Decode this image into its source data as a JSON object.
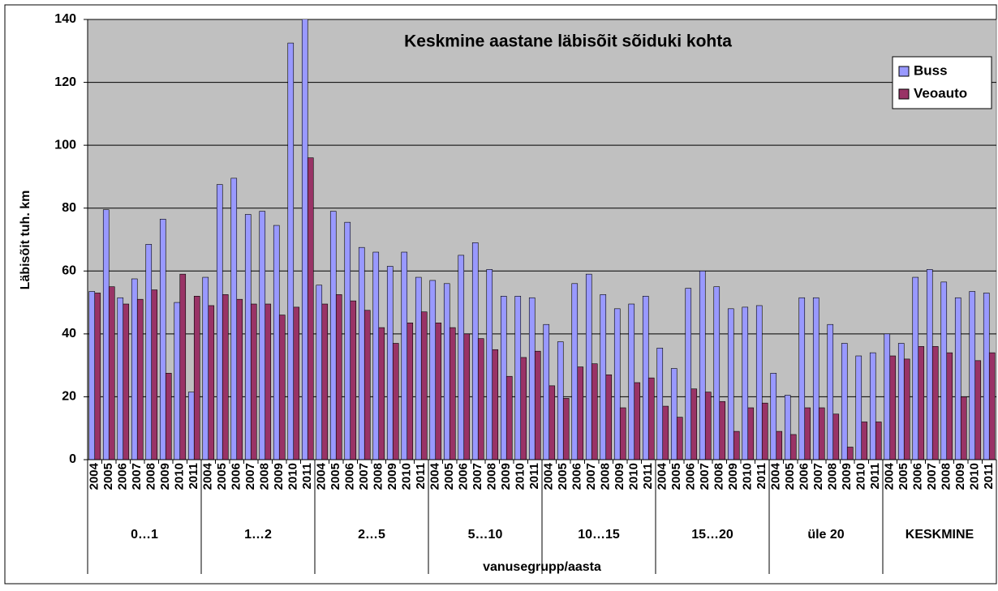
{
  "chart_data": {
    "type": "bar",
    "title": "Keskmine aastane läbisõit sõiduki kohta",
    "y_label": "Läbisõit tuh. km",
    "x_label": "vanusegrupp/aasta",
    "groups": [
      "0…1",
      "1…2",
      "2…5",
      "5…10",
      "10…15",
      "15…20",
      "üle 20",
      "KESKMINE"
    ],
    "categories": [
      "2004",
      "2005",
      "2006",
      "2007",
      "2008",
      "2009",
      "2010",
      "2011",
      "2004",
      "2005",
      "2006",
      "2007",
      "2008",
      "2009",
      "2010",
      "2011",
      "2004",
      "2005",
      "2006",
      "2007",
      "2008",
      "2009",
      "2010",
      "2011",
      "2004",
      "2005",
      "2006",
      "2007",
      "2008",
      "2009",
      "2010",
      "2011",
      "2004",
      "2005",
      "2006",
      "2007",
      "2008",
      "2009",
      "2010",
      "2011",
      "2004",
      "2005",
      "2006",
      "2007",
      "2008",
      "2009",
      "2010",
      "2011",
      "2004",
      "2005",
      "2006",
      "2007",
      "2008",
      "2009",
      "2010",
      "2011",
      "2004",
      "2005",
      "2006",
      "2007",
      "2008",
      "2009",
      "2010",
      "2011"
    ],
    "series": [
      {
        "name": "Buss",
        "color": "#9999ff",
        "values": [
          53.5,
          79.5,
          51.5,
          57.5,
          68.5,
          76.5,
          50,
          21.5,
          58,
          87.5,
          89.5,
          78,
          79,
          74.5,
          132.5,
          145,
          55.5,
          79,
          75.5,
          67.5,
          66,
          61.5,
          66,
          58,
          57,
          56,
          65,
          69,
          60.5,
          52,
          52,
          51.5,
          43,
          37.5,
          56,
          59,
          52.5,
          48,
          49.5,
          52,
          35.5,
          29,
          54.5,
          60,
          55,
          48,
          48.5,
          49,
          27.5,
          20.5,
          51.5,
          51.5,
          43,
          37,
          33,
          34,
          40,
          37,
          58,
          60.5,
          56.5,
          51.5,
          53.5,
          53
        ]
      },
      {
        "name": "Veoauto",
        "color": "#993366",
        "values": [
          53,
          55,
          49.5,
          51,
          54,
          27.5,
          59,
          52,
          49,
          52.5,
          51,
          49.5,
          49.5,
          46,
          48.5,
          96,
          49.5,
          52.5,
          50.5,
          47.5,
          42,
          37,
          43.5,
          47,
          43.5,
          42,
          40,
          38.5,
          35,
          26.5,
          32.5,
          34.5,
          23.5,
          19.5,
          29.5,
          30.5,
          27,
          16.5,
          24.5,
          26,
          17,
          13.5,
          22.5,
          21.5,
          18.5,
          9,
          16.5,
          18,
          9,
          8,
          16.5,
          16.5,
          14.5,
          4,
          12,
          12,
          33,
          32,
          36,
          36,
          34,
          20,
          31.5,
          34
        ]
      }
    ],
    "ylim": [
      0,
      140
    ],
    "yticks": [
      0,
      20,
      40,
      60,
      80,
      100,
      120,
      140
    ],
    "grid": true,
    "plot_background": "#c0c0c0",
    "legend": "top-right"
  }
}
